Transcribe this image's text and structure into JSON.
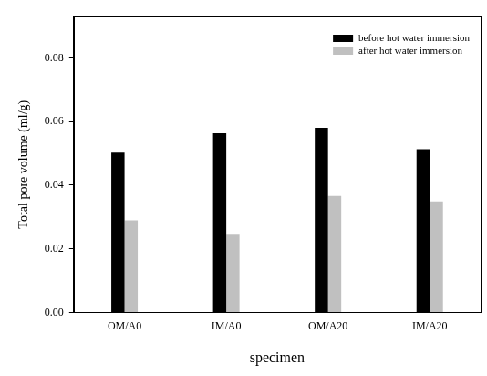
{
  "chart_data": {
    "type": "bar",
    "categories": [
      "OM/A0",
      "IM/A0",
      "OM/A20",
      "IM/A20"
    ],
    "series": [
      {
        "name": "before hot water immersion",
        "color": "#000000",
        "values": [
          0.0502,
          0.0563,
          0.058,
          0.0513
        ]
      },
      {
        "name": "after hot water immersion",
        "color": "#c0c0c0",
        "values": [
          0.0289,
          0.0247,
          0.0366,
          0.0349
        ]
      }
    ],
    "x_label": "specimen",
    "y_label": "Total pore volume (ml/g)",
    "ylim": [
      0,
      0.093
    ],
    "yticks": [
      {
        "value": 0,
        "label": "0.00"
      },
      {
        "value": 0.02,
        "label": "0.02"
      },
      {
        "value": 0.04,
        "label": "0.04"
      },
      {
        "value": 0.06,
        "label": "0.06"
      },
      {
        "value": 0.08,
        "label": "0.08"
      }
    ],
    "grid": false,
    "legend": "upper right"
  }
}
